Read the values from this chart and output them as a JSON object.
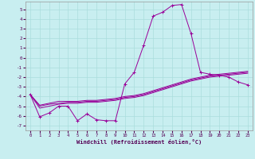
{
  "xlabel": "Windchill (Refroidissement éolien,°C)",
  "bg_color": "#c8eef0",
  "grid_color": "#aadddd",
  "line_color": "#990099",
  "x_ticks": [
    0,
    1,
    2,
    3,
    4,
    5,
    6,
    7,
    8,
    9,
    10,
    11,
    12,
    13,
    14,
    15,
    16,
    17,
    18,
    19,
    20,
    21,
    22,
    23
  ],
  "y_ticks": [
    5,
    4,
    3,
    2,
    1,
    0,
    -1,
    -2,
    -3,
    -4,
    -5,
    -6,
    -7
  ],
  "ylim": [
    -7.5,
    5.8
  ],
  "xlim": [
    -0.5,
    23.5
  ],
  "series1_x": [
    0,
    1,
    2,
    3,
    4,
    5,
    6,
    7,
    8,
    9,
    10,
    11,
    12,
    13,
    14,
    15,
    16,
    17,
    18,
    19,
    20,
    21,
    22,
    23
  ],
  "series1_y": [
    -3.8,
    -6.1,
    -5.7,
    -5.0,
    -5.0,
    -6.5,
    -5.8,
    -6.4,
    -6.5,
    -6.5,
    -2.7,
    -1.5,
    1.3,
    4.3,
    4.7,
    5.4,
    5.5,
    2.5,
    -1.5,
    -1.7,
    -1.8,
    -2.0,
    -2.5,
    -2.8
  ],
  "series2_x": [
    0,
    1,
    2,
    3,
    4,
    5,
    6,
    7,
    8,
    9,
    10,
    11,
    12,
    13,
    14,
    15,
    16,
    17,
    18,
    19,
    20,
    21,
    22,
    23
  ],
  "series2_y": [
    -3.8,
    -4.9,
    -4.7,
    -4.5,
    -4.5,
    -4.5,
    -4.4,
    -4.4,
    -4.3,
    -4.2,
    -4.0,
    -3.9,
    -3.7,
    -3.4,
    -3.1,
    -2.8,
    -2.5,
    -2.2,
    -2.0,
    -1.8,
    -1.7,
    -1.6,
    -1.5,
    -1.4
  ],
  "series3_x": [
    0,
    1,
    2,
    3,
    4,
    5,
    6,
    7,
    8,
    9,
    10,
    11,
    12,
    13,
    14,
    15,
    16,
    17,
    18,
    19,
    20,
    21,
    22,
    23
  ],
  "series3_y": [
    -3.8,
    -5.0,
    -4.8,
    -4.7,
    -4.6,
    -4.6,
    -4.5,
    -4.5,
    -4.4,
    -4.3,
    -4.1,
    -4.0,
    -3.8,
    -3.5,
    -3.2,
    -2.9,
    -2.6,
    -2.3,
    -2.1,
    -1.9,
    -1.8,
    -1.7,
    -1.6,
    -1.5
  ],
  "series4_x": [
    0,
    1,
    2,
    3,
    4,
    5,
    6,
    7,
    8,
    9,
    10,
    11,
    12,
    13,
    14,
    15,
    16,
    17,
    18,
    19,
    20,
    21,
    22,
    23
  ],
  "series4_y": [
    -3.8,
    -5.2,
    -5.0,
    -4.8,
    -4.7,
    -4.7,
    -4.6,
    -4.6,
    -4.5,
    -4.4,
    -4.2,
    -4.1,
    -3.9,
    -3.6,
    -3.3,
    -3.0,
    -2.7,
    -2.4,
    -2.2,
    -2.0,
    -1.9,
    -1.8,
    -1.7,
    -1.6
  ]
}
